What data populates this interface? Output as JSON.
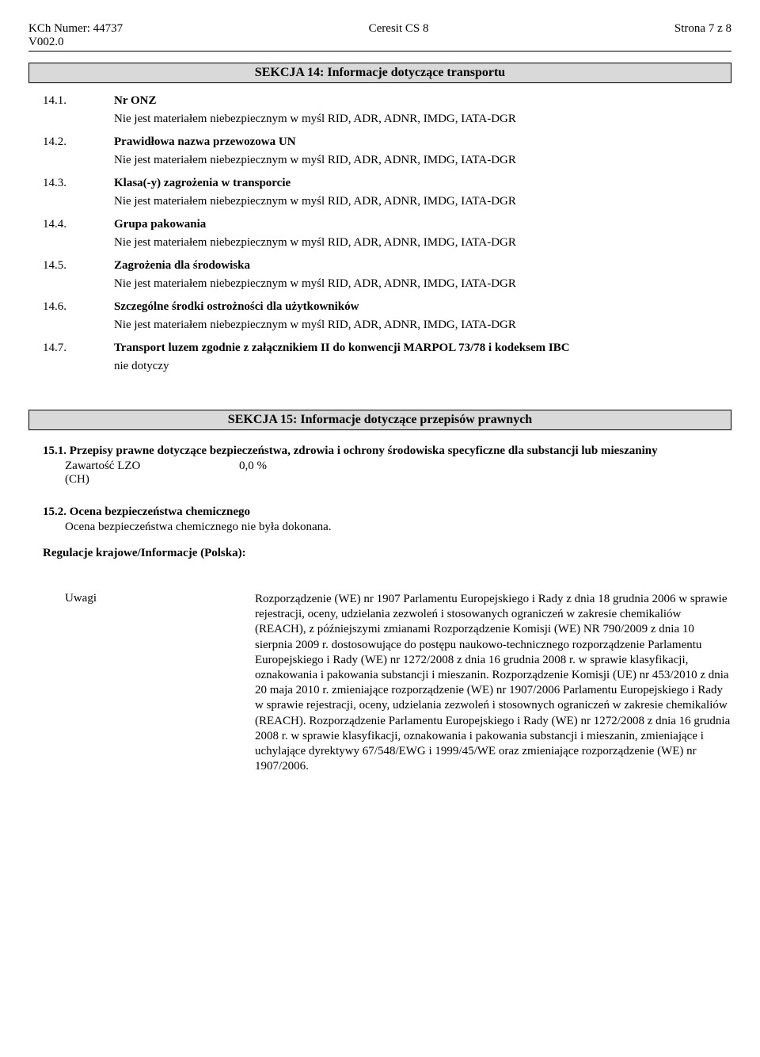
{
  "header": {
    "doc_number_label": "KCh Numer:",
    "doc_number_value": "44737",
    "version": "V002.0",
    "product": "Ceresit CS 8",
    "page": "Strona 7 z 8"
  },
  "section14": {
    "title": "SEKCJA 14: Informacje dotyczące transportu",
    "items": [
      {
        "num": "14.1.",
        "title": "Nr ONZ",
        "body": "Nie jest materiałem niebezpiecznym w myśl RID, ADR,  ADNR, IMDG, IATA-DGR"
      },
      {
        "num": "14.2.",
        "title": "Prawidłowa nazwa przewozowa UN",
        "body": "Nie jest materiałem niebezpiecznym w myśl RID, ADR,  ADNR, IMDG, IATA-DGR"
      },
      {
        "num": "14.3.",
        "title": "Klasa(-y) zagrożenia w transporcie",
        "body": "Nie jest materiałem niebezpiecznym w myśl RID, ADR,  ADNR, IMDG, IATA-DGR"
      },
      {
        "num": "14.4.",
        "title": "Grupa pakowania",
        "body": "Nie jest materiałem niebezpiecznym w myśl RID, ADR,  ADNR, IMDG, IATA-DGR"
      },
      {
        "num": "14.5.",
        "title": "Zagrożenia dla środowiska",
        "body": "Nie jest materiałem niebezpiecznym w myśl RID, ADR,  ADNR, IMDG, IATA-DGR"
      },
      {
        "num": "14.6.",
        "title": "Szczególne środki ostrożności dla użytkowników",
        "body": "Nie jest materiałem niebezpiecznym w myśl RID, ADR,  ADNR, IMDG, IATA-DGR"
      },
      {
        "num": "14.7.",
        "title": "Transport luzem zgodnie z załącznikiem II do konwencji MARPOL 73/78 i kodeksem IBC",
        "body": "nie dotyczy"
      }
    ]
  },
  "section15": {
    "title": "SEKCJA 15: Informacje dotyczące przepisów prawnych",
    "s15_1_head": "15.1. Przepisy prawne dotyczące bezpieczeństwa, zdrowia i ochrony środowiska specyficzne dla substancji lub mieszaniny",
    "lzo_label": "Zawartość LZO",
    "lzo_value": "0,0 %",
    "lzo_note": "(CH)",
    "s15_2_head": "15.2. Ocena bezpieczeństwa chemicznego",
    "s15_2_body": "Ocena bezpieczeństwa chemicznego nie była dokonana.",
    "reg_head": "Regulacje krajowe/Informacje (Polska):",
    "uwagi_label": "Uwagi",
    "uwagi_body": "Rozporządzenie (WE) nr 1907 Parlamentu Europejskiego i Rady z dnia 18 grudnia 2006 w sprawie rejestracji, oceny, udzielania zezwoleń i stosowanych ograniczeń w zakresie chemikaliów (REACH), z późniejszymi zmianami Rozporządzenie Komisji (WE) NR 790/2009 z dnia 10 sierpnia 2009 r. dostosowujące do postępu naukowo-technicznego rozporządzenie Parlamentu Europejskiego i Rady (WE) nr 1272/2008 z dnia 16 grudnia 2008 r. w sprawie klasyfikacji, oznakowania i pakowania substancji i mieszanin. Rozporządzenie Komisji (UE) nr 453/2010 z dnia 20 maja 2010 r. zmieniające rozporządzenie (WE) nr 1907/2006 Parlamentu Europejskiego i Rady w sprawie rejestracji, oceny, udzielania zezwoleń i stosownych ograniczeń w zakresie chemikaliów (REACH). Rozporządzenie Parlamentu Europejskiego i Rady (WE) nr 1272/2008 z dnia 16 grudnia 2008 r. w sprawie klasyfikacji, oznakowania i pakowania substancji i mieszanin, zmieniające i uchylające dyrektywy 67/548/EWG i 1999/45/WE oraz zmieniające rozporządzenie (WE) nr 1907/2006."
  }
}
